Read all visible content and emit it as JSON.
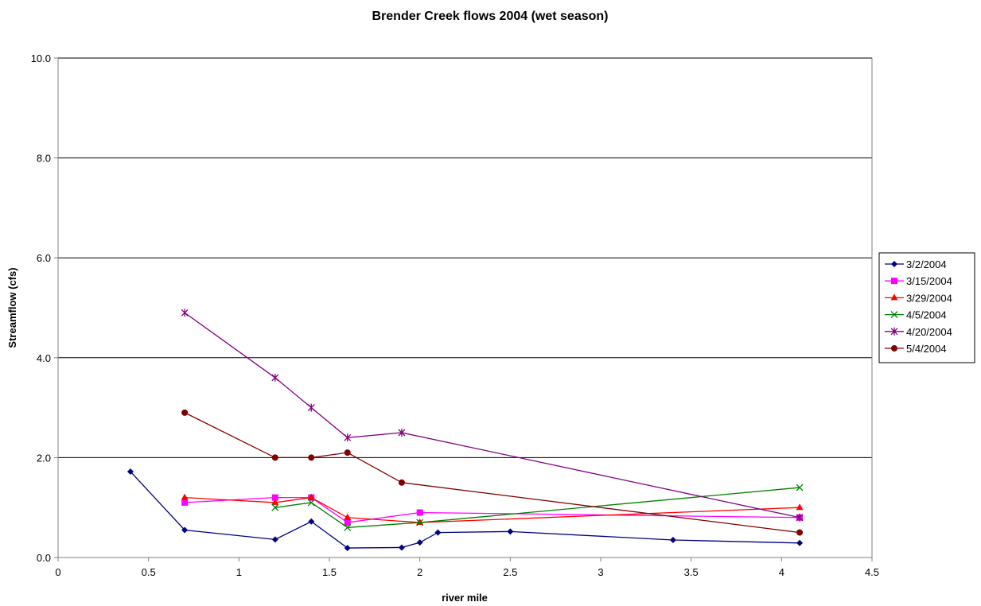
{
  "chart_data": {
    "type": "line",
    "title": "Brender Creek flows 2004 (wet season)",
    "xlabel": "river mile",
    "ylabel": "Streamflow (cfs)",
    "xlim": [
      0,
      4.5
    ],
    "ylim": [
      0,
      10
    ],
    "x_ticks": [
      "0",
      "0.5",
      "1",
      "1.5",
      "2",
      "2.5",
      "3",
      "3.5",
      "4",
      "4.5"
    ],
    "y_ticks": [
      "0.0",
      "2.0",
      "4.0",
      "6.0",
      "8.0",
      "10.0"
    ],
    "grid": "horizontal major",
    "legend_position": "right",
    "series": [
      {
        "name": "3/2/2004",
        "color": "#000080",
        "marker": "diamond",
        "points": [
          [
            0.4,
            1.72
          ],
          [
            0.7,
            0.55
          ],
          [
            1.2,
            0.36
          ],
          [
            1.4,
            0.72
          ],
          [
            1.6,
            0.19
          ],
          [
            1.9,
            0.2
          ],
          [
            2.0,
            0.3
          ],
          [
            2.1,
            0.5
          ],
          [
            2.5,
            0.52
          ],
          [
            3.4,
            0.35
          ],
          [
            4.1,
            0.29
          ]
        ]
      },
      {
        "name": "3/15/2004",
        "color": "#ff00ff",
        "marker": "square",
        "points": [
          [
            0.7,
            1.1
          ],
          [
            1.2,
            1.2
          ],
          [
            1.4,
            1.2
          ],
          [
            1.6,
            0.7
          ],
          [
            2.0,
            0.9
          ],
          [
            4.1,
            0.8
          ]
        ]
      },
      {
        "name": "3/29/2004",
        "color": "#ff0000",
        "marker": "triangle",
        "points": [
          [
            0.7,
            1.2
          ],
          [
            1.2,
            1.1
          ],
          [
            1.4,
            1.2
          ],
          [
            1.6,
            0.8
          ],
          [
            2.0,
            0.7
          ],
          [
            4.1,
            1.0
          ]
        ]
      },
      {
        "name": "4/5/2004",
        "color": "#008000",
        "marker": "x",
        "points": [
          [
            1.2,
            1.0
          ],
          [
            1.4,
            1.1
          ],
          [
            1.6,
            0.6
          ],
          [
            2.0,
            0.7
          ],
          [
            4.1,
            1.4
          ]
        ]
      },
      {
        "name": "4/20/2004",
        "color": "#800080",
        "marker": "star",
        "points": [
          [
            0.7,
            4.9
          ],
          [
            1.2,
            3.6
          ],
          [
            1.4,
            3.0
          ],
          [
            1.6,
            2.4
          ],
          [
            1.9,
            2.5
          ],
          [
            4.1,
            0.8
          ]
        ]
      },
      {
        "name": "5/4/2004",
        "color": "#800000",
        "marker": "circle",
        "points": [
          [
            0.7,
            2.9
          ],
          [
            1.2,
            2.0
          ],
          [
            1.4,
            2.0
          ],
          [
            1.6,
            2.1
          ],
          [
            1.9,
            1.5
          ],
          [
            4.1,
            0.5
          ]
        ]
      }
    ]
  }
}
